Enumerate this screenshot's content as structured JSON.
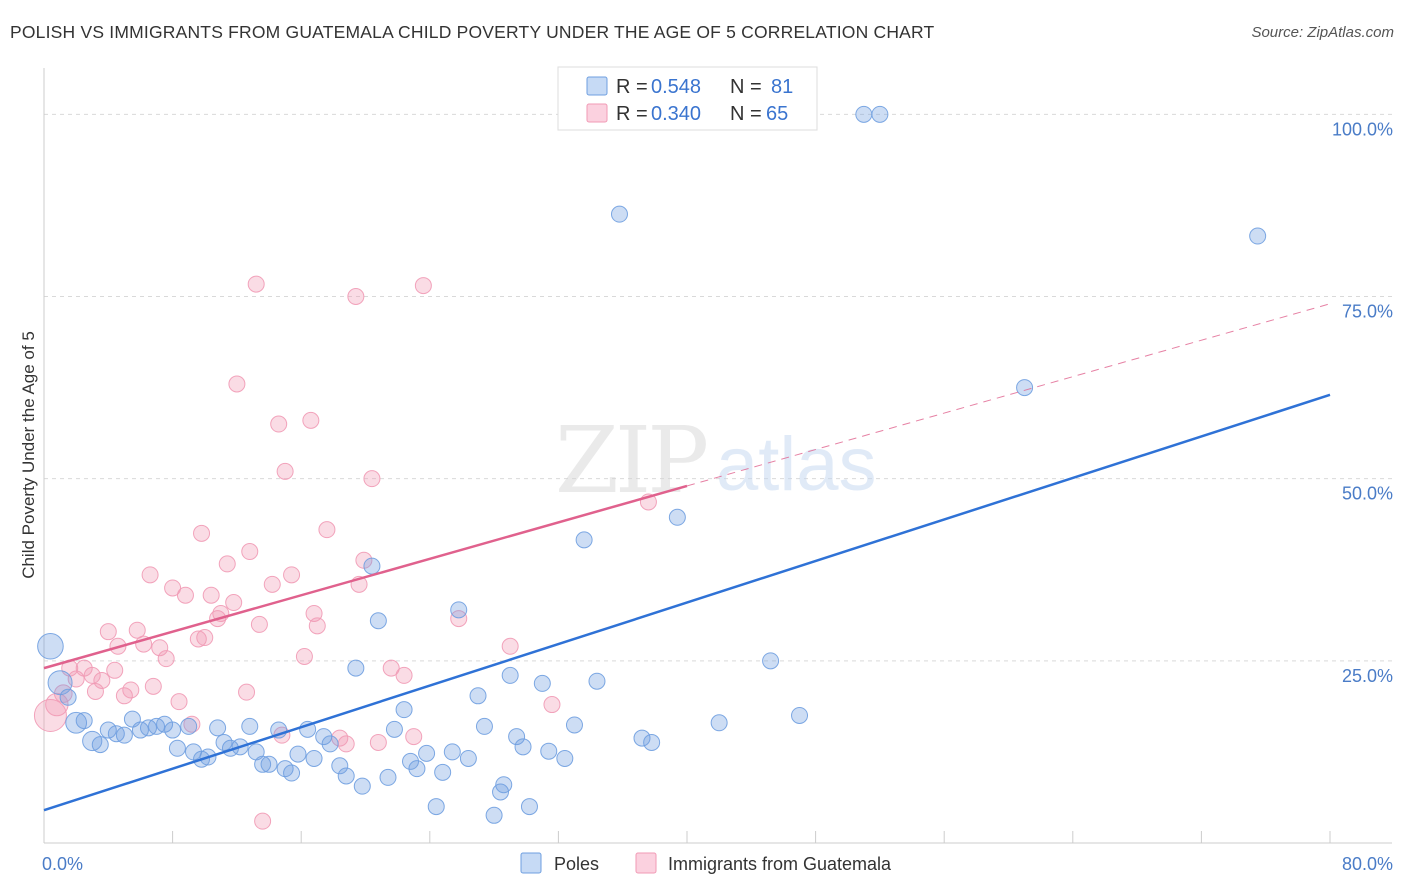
{
  "title": "POLISH VS IMMIGRANTS FROM GUATEMALA CHILD POVERTY UNDER THE AGE OF 5 CORRELATION CHART",
  "source": "Source: ZipAtlas.com",
  "watermark": {
    "zip": "ZIP",
    "atlas": "atlas"
  },
  "colors": {
    "poles": "#6f9fe0",
    "poles_line": "#2f72d6",
    "guatemala": "#f19ab5",
    "guatemala_line": "#e0618d",
    "tick_text": "#4a7cc7",
    "grid": "#d9d9d9"
  },
  "legend": {
    "rows": [
      {
        "series": "Poles",
        "r_label": "R =",
        "r_value": "0.548",
        "n_label": "N =",
        "n_value": "81"
      },
      {
        "series": "Immigrants from Guatemala",
        "r_label": "R =",
        "r_value": "0.340",
        "n_label": "N =",
        "n_value": "65"
      }
    ]
  },
  "chart_data": {
    "type": "scatter",
    "title": "POLISH VS IMMIGRANTS FROM GUATEMALA CHILD POVERTY UNDER THE AGE OF 5 CORRELATION CHART",
    "xlabel": "",
    "ylabel": "Child Poverty Under the Age of 5",
    "xlim": [
      0,
      80
    ],
    "ylim": [
      0,
      100
    ],
    "x_tick_labels": [
      "0.0%",
      "80.0%"
    ],
    "y_ticks": [
      25,
      50,
      75,
      100
    ],
    "y_tick_labels": [
      "25.0%",
      "50.0%",
      "75.0%",
      "100.0%"
    ],
    "grid": true,
    "legend_position": "top-center",
    "series": [
      {
        "name": "Poles",
        "color": "#6f9fe0",
        "trend": {
          "x": [
            0,
            80
          ],
          "y": [
            4.5,
            61.5
          ],
          "dashed_extension": false
        },
        "points": [
          [
            0.4,
            27.0,
            1.6
          ],
          [
            1.0,
            22.0,
            1.5
          ],
          [
            1.5,
            20.0,
            1.0
          ],
          [
            2.0,
            16.5,
            1.3
          ],
          [
            2.5,
            16.8,
            1.0
          ],
          [
            3.0,
            14.0,
            1.2
          ],
          [
            3.5,
            13.5,
            1.0
          ],
          [
            4.0,
            15.5,
            1.0
          ],
          [
            4.5,
            15.0,
            1.0
          ],
          [
            5.0,
            14.8,
            1.0
          ],
          [
            5.5,
            17.0,
            1.0
          ],
          [
            6.0,
            15.5,
            1.0
          ],
          [
            6.5,
            15.8,
            1.0
          ],
          [
            7.0,
            16.0,
            1.0
          ],
          [
            7.5,
            16.3,
            1.0
          ],
          [
            8.0,
            15.5,
            1.0
          ],
          [
            8.3,
            13.0,
            1.0
          ],
          [
            9.0,
            16.0,
            1.0
          ],
          [
            9.3,
            12.5,
            1.0
          ],
          [
            9.8,
            11.5,
            1.0
          ],
          [
            10.2,
            11.8,
            1.0
          ],
          [
            10.8,
            15.8,
            1.0
          ],
          [
            11.2,
            13.8,
            1.0
          ],
          [
            11.6,
            13.0,
            1.0
          ],
          [
            12.2,
            13.2,
            1.0
          ],
          [
            12.8,
            16.0,
            1.0
          ],
          [
            13.2,
            12.5,
            1.0
          ],
          [
            13.6,
            10.8,
            1.0
          ],
          [
            14.0,
            10.8,
            1.0
          ],
          [
            14.6,
            15.5,
            1.0
          ],
          [
            15.0,
            10.2,
            1.0
          ],
          [
            15.4,
            9.6,
            1.0
          ],
          [
            15.8,
            12.2,
            1.0
          ],
          [
            16.4,
            15.6,
            1.0
          ],
          [
            16.8,
            11.6,
            1.0
          ],
          [
            17.4,
            14.6,
            1.0
          ],
          [
            17.8,
            13.6,
            1.0
          ],
          [
            18.4,
            10.6,
            1.0
          ],
          [
            18.8,
            9.2,
            1.0
          ],
          [
            19.4,
            24.0,
            1.0
          ],
          [
            19.8,
            7.8,
            1.0
          ],
          [
            20.4,
            38.0,
            1.0
          ],
          [
            20.8,
            30.5,
            1.0
          ],
          [
            21.4,
            9.0,
            1.0
          ],
          [
            21.8,
            15.6,
            1.0
          ],
          [
            22.4,
            18.3,
            1.0
          ],
          [
            22.8,
            11.2,
            1.0
          ],
          [
            23.2,
            10.2,
            1.0
          ],
          [
            23.8,
            12.3,
            1.0
          ],
          [
            24.4,
            5.0,
            1.0
          ],
          [
            24.8,
            9.7,
            1.0
          ],
          [
            25.4,
            12.5,
            1.0
          ],
          [
            25.8,
            32.0,
            1.0
          ],
          [
            26.4,
            11.6,
            1.0
          ],
          [
            27.0,
            20.2,
            1.0
          ],
          [
            27.4,
            16.0,
            1.0
          ],
          [
            28.0,
            3.8,
            1.0
          ],
          [
            28.4,
            7.0,
            1.0
          ],
          [
            28.6,
            8.0,
            1.0
          ],
          [
            29.0,
            23.0,
            1.0
          ],
          [
            29.4,
            14.6,
            1.0
          ],
          [
            29.8,
            13.2,
            1.0
          ],
          [
            30.2,
            5.0,
            1.0
          ],
          [
            31.0,
            21.9,
            1.0
          ],
          [
            31.4,
            12.6,
            1.0
          ],
          [
            32.4,
            11.6,
            1.0
          ],
          [
            33.0,
            16.2,
            1.0
          ],
          [
            33.6,
            41.6,
            1.0
          ],
          [
            34.4,
            22.2,
            1.0
          ],
          [
            35.8,
            86.3,
            1.0
          ],
          [
            37.2,
            14.4,
            1.0
          ],
          [
            37.8,
            13.8,
            1.0
          ],
          [
            39.4,
            44.7,
            1.0
          ],
          [
            42.0,
            16.5,
            1.0
          ],
          [
            45.2,
            25.0,
            1.0
          ],
          [
            47.0,
            17.5,
            1.0
          ],
          [
            51.0,
            100.0,
            1.0
          ],
          [
            52.0,
            100.0,
            1.0
          ],
          [
            61.0,
            62.5,
            1.0
          ],
          [
            75.5,
            83.3,
            1.0
          ]
        ]
      },
      {
        "name": "Immigrants from Guatemala",
        "color": "#f19ab5",
        "trend": {
          "x": [
            0,
            40,
            80
          ],
          "y": [
            24.0,
            49.0,
            74.0
          ],
          "solid_until_x": 40,
          "dashed_extension": true
        },
        "points": [
          [
            0.4,
            17.5,
            2.0
          ],
          [
            0.8,
            19.0,
            1.4
          ],
          [
            1.2,
            20.5,
            1.1
          ],
          [
            1.6,
            24.0,
            1.0
          ],
          [
            2.0,
            22.5,
            1.0
          ],
          [
            2.5,
            24.0,
            1.0
          ],
          [
            3.0,
            23.0,
            1.0
          ],
          [
            3.2,
            20.8,
            1.0
          ],
          [
            3.6,
            22.3,
            1.0
          ],
          [
            4.0,
            29.0,
            1.0
          ],
          [
            4.4,
            23.7,
            1.0
          ],
          [
            4.6,
            27.0,
            1.0
          ],
          [
            5.0,
            20.2,
            1.0
          ],
          [
            5.4,
            21.0,
            1.0
          ],
          [
            5.8,
            29.2,
            1.0
          ],
          [
            6.2,
            27.3,
            1.0
          ],
          [
            6.6,
            36.8,
            1.0
          ],
          [
            6.8,
            21.5,
            1.0
          ],
          [
            7.2,
            26.8,
            1.0
          ],
          [
            7.6,
            25.3,
            1.0
          ],
          [
            8.0,
            35.0,
            1.0
          ],
          [
            8.4,
            19.4,
            1.0
          ],
          [
            8.8,
            34.0,
            1.0
          ],
          [
            9.2,
            16.3,
            1.0
          ],
          [
            9.6,
            28.0,
            1.0
          ],
          [
            9.8,
            42.5,
            1.0
          ],
          [
            10.0,
            28.2,
            1.0
          ],
          [
            10.4,
            34.0,
            1.0
          ],
          [
            10.8,
            30.8,
            1.0
          ],
          [
            11.0,
            31.5,
            1.0
          ],
          [
            11.4,
            38.3,
            1.0
          ],
          [
            11.8,
            33.0,
            1.0
          ],
          [
            12.0,
            63.0,
            1.0
          ],
          [
            12.6,
            20.7,
            1.0
          ],
          [
            12.8,
            40.0,
            1.0
          ],
          [
            13.2,
            76.7,
            1.0
          ],
          [
            13.4,
            30.0,
            1.0
          ],
          [
            13.6,
            3.0,
            1.0
          ],
          [
            14.2,
            35.5,
            1.0
          ],
          [
            14.6,
            57.5,
            1.0
          ],
          [
            14.8,
            14.8,
            1.0
          ],
          [
            15.0,
            51.0,
            1.0
          ],
          [
            15.4,
            36.8,
            1.0
          ],
          [
            16.2,
            25.6,
            1.0
          ],
          [
            16.6,
            58.0,
            1.0
          ],
          [
            16.8,
            31.5,
            1.0
          ],
          [
            17.0,
            29.8,
            1.0
          ],
          [
            17.6,
            43.0,
            1.0
          ],
          [
            18.4,
            14.4,
            1.0
          ],
          [
            18.8,
            13.6,
            1.0
          ],
          [
            19.4,
            75.0,
            1.0
          ],
          [
            19.6,
            35.5,
            1.0
          ],
          [
            19.9,
            38.8,
            1.0
          ],
          [
            20.4,
            50.0,
            1.0
          ],
          [
            20.8,
            13.8,
            1.0
          ],
          [
            21.6,
            24.0,
            1.0
          ],
          [
            22.4,
            23.0,
            1.0
          ],
          [
            23.0,
            14.6,
            1.0
          ],
          [
            23.6,
            76.5,
            1.0
          ],
          [
            25.8,
            30.8,
            1.0
          ],
          [
            29.0,
            27.0,
            1.0
          ],
          [
            31.6,
            19.0,
            1.0
          ],
          [
            37.6,
            46.8,
            1.0
          ]
        ]
      }
    ]
  }
}
